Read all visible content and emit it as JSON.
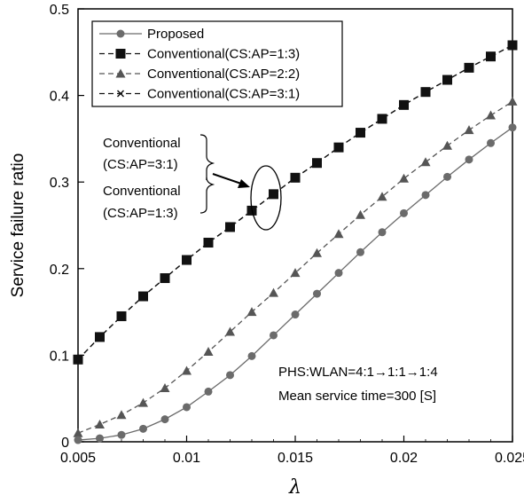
{
  "chart_data": {
    "type": "line",
    "xlabel": "λ",
    "ylabel": "Service failure ratio",
    "xlim": [
      0.005,
      0.025
    ],
    "ylim": [
      0,
      0.5
    ],
    "x_ticks": [
      "0.005",
      "0.01",
      "0.015",
      "0.02",
      "0.025"
    ],
    "y_ticks": [
      "0",
      "0.1",
      "0.2",
      "0.3",
      "0.4",
      "0.5"
    ],
    "grid": false,
    "legend_position": "top-left",
    "x": [
      0.005,
      0.006,
      0.007,
      0.008,
      0.009,
      0.01,
      0.011,
      0.012,
      0.013,
      0.014,
      0.015,
      0.016,
      0.017,
      0.018,
      0.019,
      0.02,
      0.021,
      0.022,
      0.023,
      0.024,
      0.025
    ],
    "series": [
      {
        "name": "Proposed",
        "marker": "circle",
        "linestyle": "solid",
        "color": "#6b6b6b",
        "values": [
          0.002,
          0.004,
          0.008,
          0.015,
          0.026,
          0.04,
          0.058,
          0.077,
          0.099,
          0.123,
          0.147,
          0.171,
          0.195,
          0.219,
          0.242,
          0.264,
          0.285,
          0.306,
          0.326,
          0.345,
          0.363
        ]
      },
      {
        "name": "Conventional(CS:AP=1:3)",
        "marker": "square",
        "linestyle": "dashed",
        "color": "#111111",
        "values": [
          0.095,
          0.121,
          0.145,
          0.168,
          0.189,
          0.21,
          0.23,
          0.248,
          0.267,
          0.286,
          0.305,
          0.322,
          0.34,
          0.357,
          0.373,
          0.389,
          0.404,
          0.418,
          0.432,
          0.445,
          0.458
        ]
      },
      {
        "name": "Conventional(CS:AP=2:2)",
        "marker": "triangle",
        "linestyle": "dashed",
        "color": "#555555",
        "values": [
          0.01,
          0.02,
          0.031,
          0.045,
          0.062,
          0.082,
          0.104,
          0.127,
          0.15,
          0.172,
          0.195,
          0.218,
          0.24,
          0.262,
          0.283,
          0.304,
          0.323,
          0.342,
          0.36,
          0.377,
          0.393
        ]
      },
      {
        "name": "Conventional(CS:AP=3:1)",
        "marker": "cross",
        "linestyle": "dashed",
        "color": "#111111",
        "values": [
          0.095,
          0.121,
          0.145,
          0.168,
          0.189,
          0.21,
          0.23,
          0.248,
          0.267,
          0.286,
          0.305,
          0.322,
          0.34,
          0.357,
          0.373,
          0.389,
          0.404,
          0.418,
          0.432,
          0.445,
          0.458
        ]
      }
    ],
    "annotations": {
      "callout_line1": "Conventional",
      "callout_line2": "(CS:AP=3:1)",
      "callout_line3": "Conventional",
      "callout_line4": "(CS:AP=1:3)",
      "conditions_line1": "PHS:WLAN=4:1→1:1→1:4",
      "conditions_line2": "Mean service time=300 [S]"
    }
  }
}
